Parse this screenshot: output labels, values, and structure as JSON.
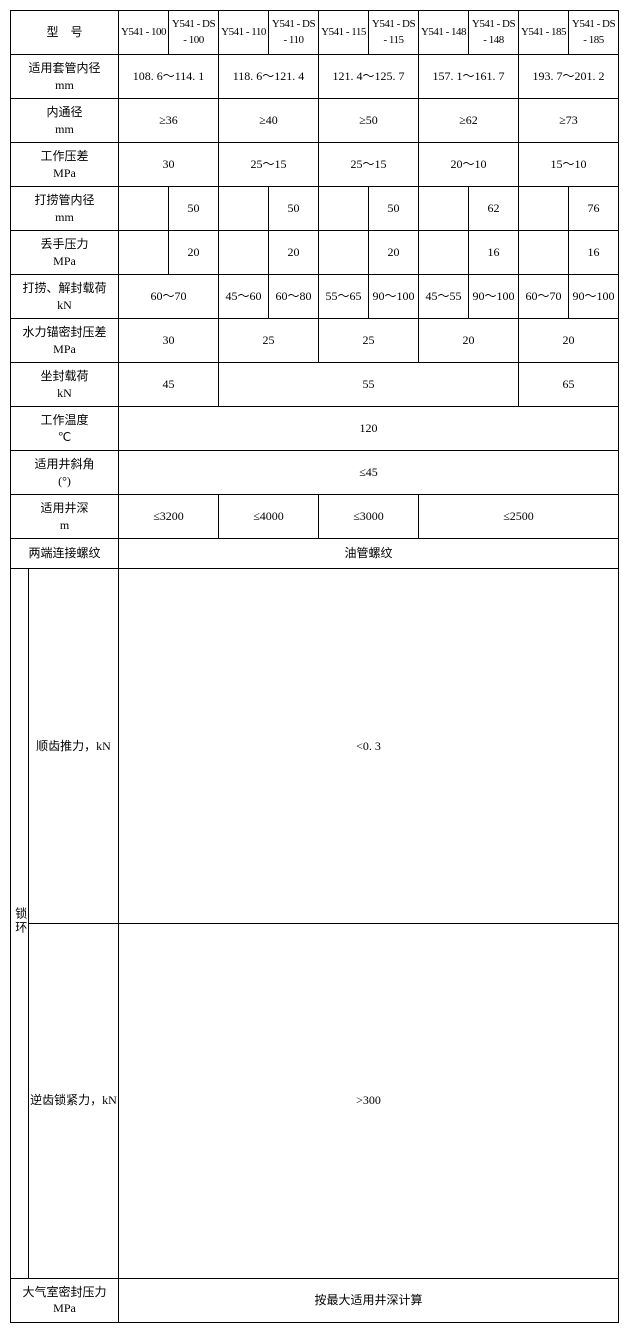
{
  "header": {
    "model_label": "型　号",
    "cols": [
      "Y541 - 100",
      "Y541 - DS - 100",
      "Y541 - 110",
      "Y541 - DS - 110",
      "Y541 - 115",
      "Y541 - DS - 115",
      "Y541 - 148",
      "Y541 - DS - 148",
      "Y541 - 185",
      "Y541 - DS - 185"
    ]
  },
  "rows": {
    "casing_id": {
      "label": "适用套管内径\nmm",
      "v": [
        "108. 6～114. 1",
        "118. 6～121. 4",
        "121. 4～125. 7",
        "157. 1～161. 7",
        "193. 7～201. 2"
      ]
    },
    "bore": {
      "label": "内通径\nmm",
      "v": [
        "≥36",
        "≥40",
        "≥50",
        "≥62",
        "≥73"
      ]
    },
    "work_dp": {
      "label": "工作压差\nMPa",
      "v": [
        "30",
        "25～15",
        "25～15",
        "20～10",
        "15～10"
      ]
    },
    "fishing_id": {
      "label": "打捞管内径\nmm",
      "v": [
        "50",
        "50",
        "50",
        "62",
        "76"
      ]
    },
    "drop_press": {
      "label": "丢手压力\nMPa",
      "v": [
        "20",
        "20",
        "20",
        "16",
        "16"
      ]
    },
    "fish_load": {
      "label": "打捞、解封载荷\nkN",
      "v": [
        "60～70",
        "45～60",
        "60～80",
        "55～65",
        "90～100",
        "45～55",
        "90～100",
        "60～70",
        "90～100"
      ]
    },
    "anchor_dp": {
      "label": "水力锚密封压差\nMPa",
      "v": [
        "30",
        "25",
        "25",
        "20",
        "20"
      ]
    },
    "set_load": {
      "label": "坐封载荷\nkN",
      "v": [
        "45",
        "55",
        "65"
      ]
    },
    "temp": {
      "label": "工作温度\n℃",
      "v": "120"
    },
    "incl": {
      "label": "适用井斜角\n(°)",
      "v": "≤45"
    },
    "depth": {
      "label": "适用井深\nm",
      "v": [
        "≤3200",
        "≤4000",
        "≤3000",
        "≤2500"
      ]
    },
    "thread": {
      "label": "两端连接螺纹",
      "v": "油管螺纹"
    },
    "lock_group": "锁环",
    "fwd_thrust": {
      "label": "顺齿推力，kN",
      "v": "<0. 3"
    },
    "rev_lock": {
      "label": "逆齿锁紧力，kN",
      "v": ">300"
    },
    "gas_seal": {
      "label": "大气室密封压力\nMPa",
      "v": "按最大适用井深计算"
    }
  },
  "colwidths": {
    "label": 100,
    "sub": 50
  }
}
